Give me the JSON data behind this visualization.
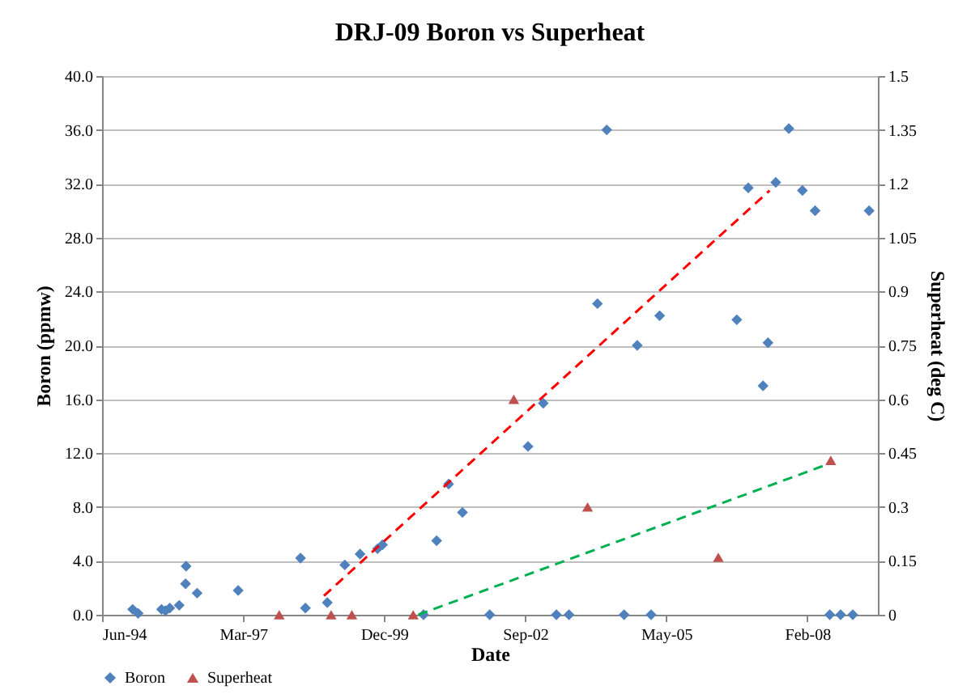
{
  "chart_data": {
    "type": "scatter",
    "title": "DRJ-09 Boron vs Superheat",
    "xlabel": "Date",
    "ylabel": "Boron (ppmw)",
    "y2label": "Superheat (deg C)",
    "xlim": [
      "1994-06-15",
      "2009-07-06"
    ],
    "xticks": [
      {
        "value": "1994-06-15",
        "label": "Jun-94"
      },
      {
        "value": "1997-03-11",
        "label": "Mar-97"
      },
      {
        "value": "1999-12-06",
        "label": "Dec-99"
      },
      {
        "value": "2002-09-01",
        "label": "Sep-02"
      },
      {
        "value": "2005-05-28",
        "label": "May-05"
      },
      {
        "value": "2008-02-22",
        "label": "Feb-08"
      }
    ],
    "ylim": [
      0,
      40
    ],
    "yticks": [
      {
        "value": 0,
        "label": "0.0"
      },
      {
        "value": 4,
        "label": "4.0"
      },
      {
        "value": 8,
        "label": "8.0"
      },
      {
        "value": 12,
        "label": "12.0"
      },
      {
        "value": 16,
        "label": "16.0"
      },
      {
        "value": 20,
        "label": "20.0"
      },
      {
        "value": 24,
        "label": "24.0"
      },
      {
        "value": 28,
        "label": "28.0"
      },
      {
        "value": 32,
        "label": "32.0"
      },
      {
        "value": 36,
        "label": "36.0"
      },
      {
        "value": 40,
        "label": "40.0"
      }
    ],
    "y2lim": [
      0,
      1.5
    ],
    "y2ticks": [
      0,
      0.15,
      0.3,
      0.45,
      0.6,
      0.75,
      0.9,
      1.05,
      1.2,
      1.35,
      1.5
    ],
    "grid": "y",
    "legend": "bottom",
    "series": [
      {
        "name": "Boron",
        "color": "#4f81bd",
        "marker": "diamond",
        "x": [
          "1995-01-18",
          "1995-02-26",
          "1995-08-11",
          "1995-09-08",
          "1995-10-08",
          "1995-12-14",
          "1996-01-28",
          "1996-02-01",
          "1996-04-19",
          "1997-02-04",
          "1998-04-22",
          "1998-05-27",
          "1998-10-29",
          "1999-03-02",
          "1999-06-18",
          "1999-10-20",
          "1999-11-24",
          "2000-09-10",
          "2000-12-12",
          "2001-03-07",
          "2001-06-13",
          "2001-12-23",
          "2002-09-21",
          "2003-01-07",
          "2003-04-10",
          "2003-07-08",
          "2004-01-26",
          "2004-04-01",
          "2004-08-02",
          "2004-11-03",
          "2005-02-09",
          "2005-04-11",
          "2006-10-10",
          "2006-12-30",
          "2007-04-14",
          "2007-05-19",
          "2007-07-13",
          "2007-10-14",
          "2008-01-18",
          "2008-04-17",
          "2008-07-30",
          "2008-10-15",
          "2009-01-09",
          "2009-05-05"
        ],
        "values": [
          0.4,
          0.1,
          0.4,
          0.3,
          0.5,
          0.7,
          2.3,
          3.6,
          1.6,
          1.8,
          4.2,
          0.5,
          0.9,
          3.7,
          4.5,
          4.9,
          5.2,
          0,
          5.5,
          9.7,
          7.6,
          0,
          12.5,
          15.7,
          0,
          0,
          23.1,
          36.0,
          0,
          20.0,
          0,
          22.2,
          21.9,
          31.7,
          17.0,
          20.2,
          32.1,
          36.1,
          31.5,
          30.0,
          0,
          0,
          0,
          30.0
        ]
      },
      {
        "name": "Superheat",
        "axis": "y2",
        "color": "#c0504d",
        "marker": "triangle",
        "x": [
          "1997-11-22",
          "1998-11-25",
          "1999-04-21",
          "2000-06-29",
          "2002-06-12",
          "2003-11-17",
          "2006-06-01",
          "2008-08-06"
        ],
        "values": [
          0,
          0,
          0,
          0,
          0.6,
          0.3,
          0.16,
          0.43
        ]
      },
      {
        "type": "line",
        "color": "#ff0000",
        "line_style": "dashed",
        "marker": "none",
        "x": [
          "1998-10-05",
          "2007-05-31"
        ],
        "values": [
          1.4,
          31.5
        ]
      },
      {
        "type": "line",
        "axis": "y2",
        "color": "#00b050",
        "line_style": "dashed",
        "marker": "none",
        "x": [
          "2000-08-04",
          "2008-07-22"
        ],
        "values": [
          0,
          0.42
        ]
      }
    ]
  }
}
